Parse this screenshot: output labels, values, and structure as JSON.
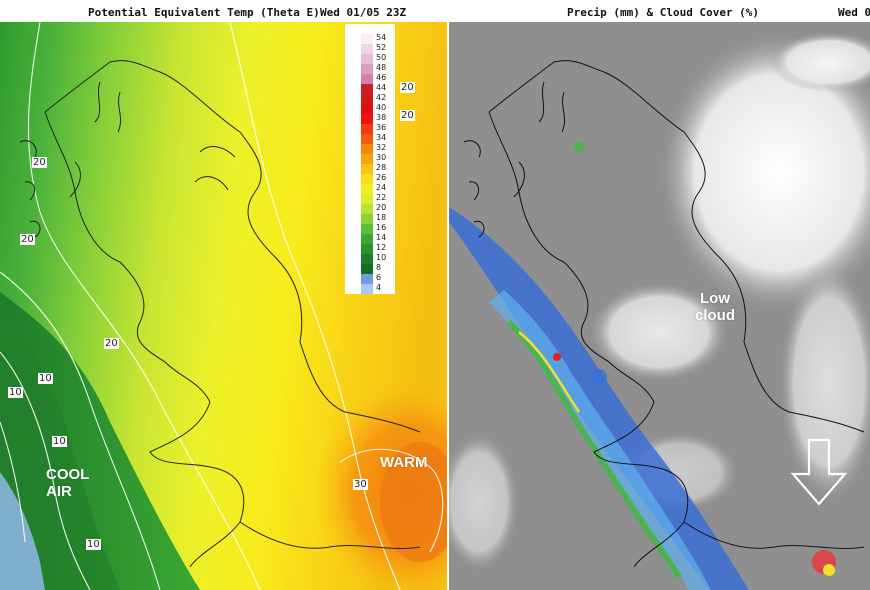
{
  "left_panel": {
    "title": "Potential Equivalent Temp (Theta E)",
    "datetime": "Wed 01/05 23Z",
    "annotations": {
      "cool": "COOL\nAIR",
      "warm": "WARM"
    },
    "contour_labels": [
      "20",
      "20",
      "20",
      "20",
      "20",
      "10",
      "10",
      "10",
      "10",
      "30"
    ],
    "legend": {
      "values": [
        "54",
        "52",
        "50",
        "48",
        "46",
        "44",
        "42",
        "40",
        "38",
        "36",
        "34",
        "32",
        "30",
        "28",
        "26",
        "24",
        "22",
        "20",
        "18",
        "16",
        "14",
        "12",
        "10",
        "8",
        "6",
        "4"
      ],
      "colors": [
        "#f7f0f6",
        "#eed8e8",
        "#e6bcd6",
        "#dc9ec2",
        "#d27fae",
        "#c81e2a",
        "#d41818",
        "#e11010",
        "#ee1212",
        "#f33a10",
        "#f25d0c",
        "#f7850b",
        "#f9a30e",
        "#f9c312",
        "#f9df18",
        "#f3ef1f",
        "#dcef25",
        "#b9e42d",
        "#8bd233",
        "#5dbe34",
        "#3aa832",
        "#2a922e",
        "#1f7c2a",
        "#1a6a27",
        "#6f9ee0",
        "#a9c7f0"
      ]
    }
  },
  "right_panel": {
    "title": "Precip (mm) & Cloud Cover (%)",
    "datetime": "Wed 0",
    "annotations": {
      "low_cloud": "Low\ncloud"
    }
  }
}
